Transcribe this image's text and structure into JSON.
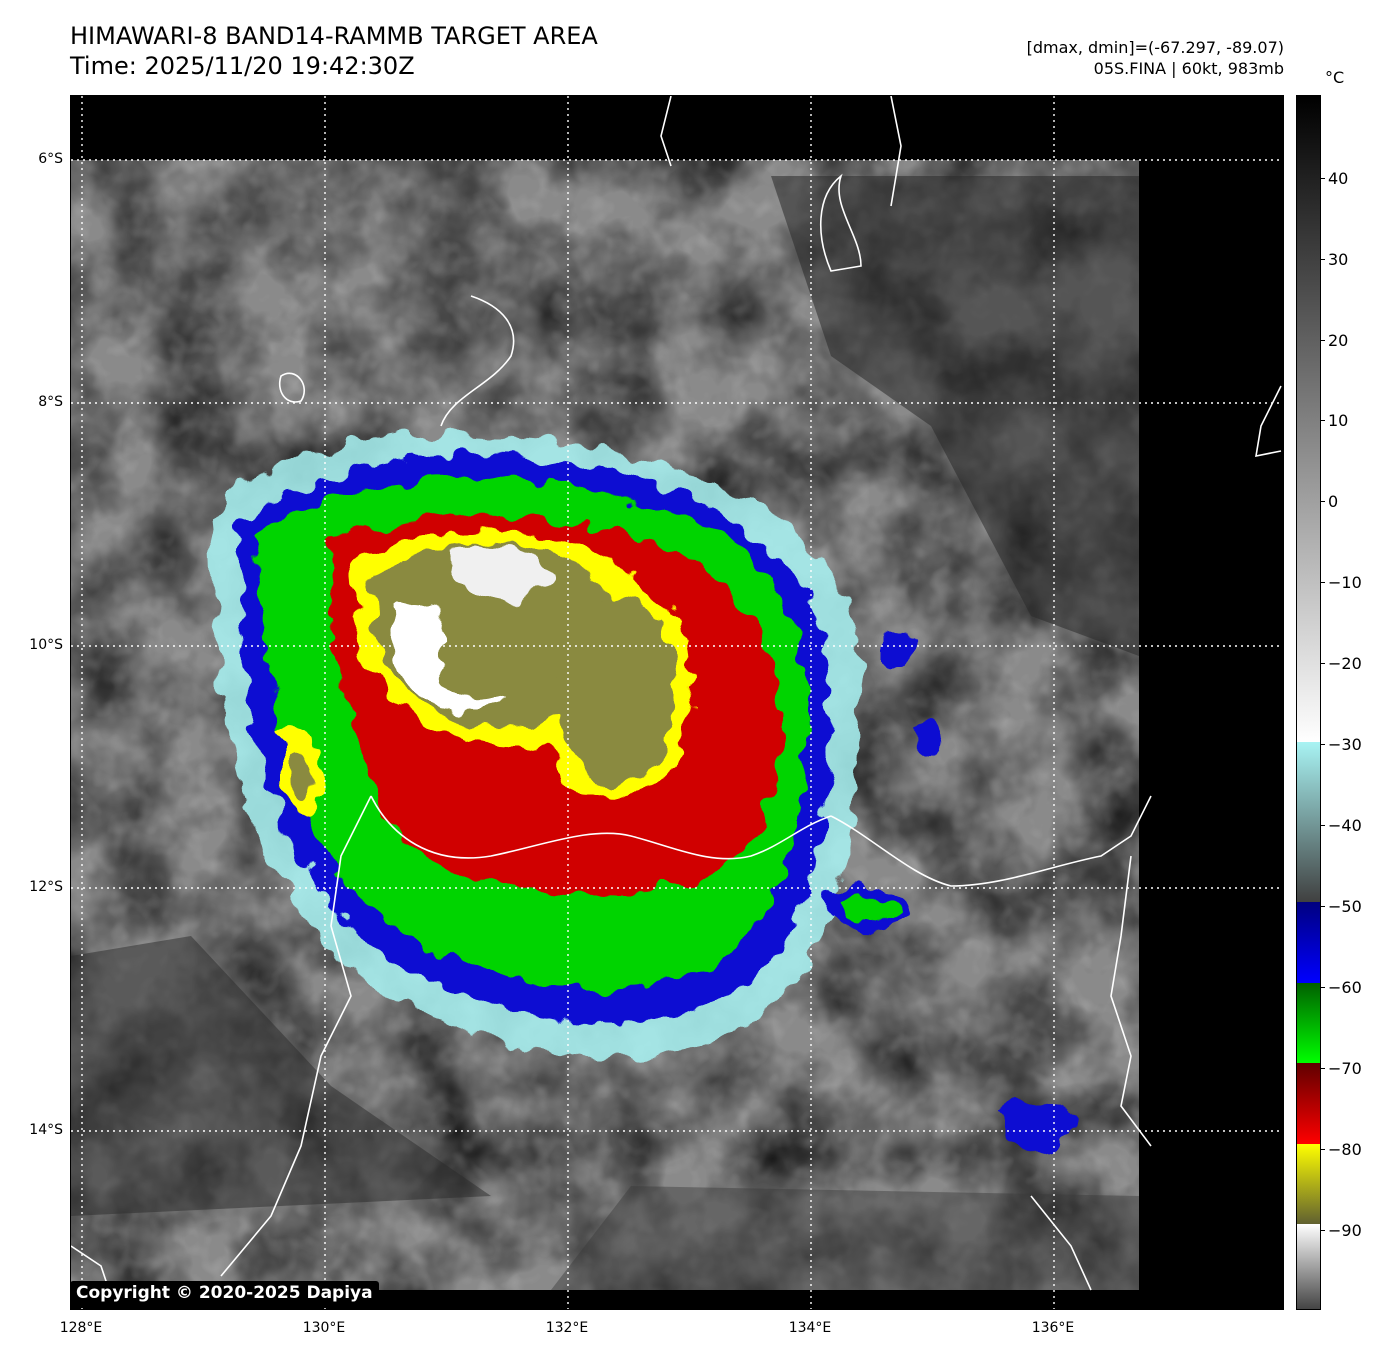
{
  "header": {
    "title_line1": "HIMAWARI-8 BAND14-RAMMB TARGET AREA",
    "title_line2": "Time: 2025/11/20 19:42:30Z",
    "range_text": "[dmax, dmin]=(-67.297, -89.07)",
    "storm_text": "05S.FINA | 60kt, 983mb"
  },
  "map": {
    "lat_labels": [
      "6°S",
      "8°S",
      "10°S",
      "12°S",
      "14°S"
    ],
    "lon_labels": [
      "128°E",
      "130°E",
      "132°E",
      "134°E",
      "136°E"
    ],
    "copyright": "Copyright © 2020-2025 Dapiya"
  },
  "colorbar": {
    "unit": "°C",
    "ticks": [
      "40",
      "30",
      "20",
      "10",
      "0",
      "−10",
      "−20",
      "−30",
      "−40",
      "−50",
      "−60",
      "−70",
      "−80",
      "−90"
    ],
    "colors": {
      "warm_top": "#000000",
      "gray_mid": "#808080",
      "near_white": "#f5f5f5",
      "cyan": "#a8f3f3",
      "blue": "#0a0ad2",
      "green": "#00d400",
      "red": "#d00000",
      "yellow": "#ffff00",
      "olive": "#808040"
    }
  }
}
